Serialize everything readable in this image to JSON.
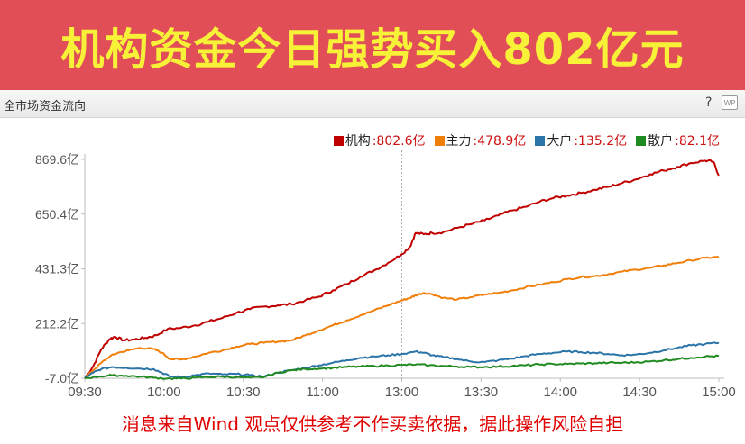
{
  "banner": {
    "title": "机构资金今日强势买入802亿元"
  },
  "panel": {
    "title": "全市场资金流向",
    "help_icon": "?",
    "wp_icon": "WP"
  },
  "legend": [
    {
      "name": "机构",
      "value": ":802.6亿",
      "color": "#c00000"
    },
    {
      "name": "主力",
      "value": ":478.9亿",
      "color": "#f07f09"
    },
    {
      "name": "大户",
      "value": ":135.2亿",
      "color": "#2a74a8"
    },
    {
      "name": "散户",
      "value": ":82.1亿",
      "color": "#1f8a1f"
    }
  ],
  "chart_data": {
    "type": "line",
    "x_ticks": [
      "09:30",
      "10:00",
      "10:30",
      "11:00",
      "13:00",
      "13:30",
      "14:00",
      "14:30",
      "15:00"
    ],
    "y_ticks": [
      "869.6亿",
      "650.4亿",
      "431.3亿",
      "212.2亿",
      "-7.0亿"
    ],
    "ylim": [
      -7.0,
      869.6
    ],
    "grid": false,
    "reference_line_at": "13:00",
    "legend_position": "top-right",
    "series": [
      {
        "name": "机构",
        "color": "#c00000",
        "final": 802.6,
        "points": [
          [
            0,
            -7
          ],
          [
            3,
            40
          ],
          [
            6,
            110
          ],
          [
            9,
            150
          ],
          [
            11,
            160
          ],
          [
            14,
            145
          ],
          [
            18,
            148
          ],
          [
            22,
            155
          ],
          [
            26,
            165
          ],
          [
            30,
            190
          ],
          [
            35,
            195
          ],
          [
            40,
            205
          ],
          [
            45,
            220
          ],
          [
            50,
            235
          ],
          [
            55,
            255
          ],
          [
            60,
            270
          ],
          [
            65,
            280
          ],
          [
            70,
            285
          ],
          [
            75,
            290
          ],
          [
            80,
            305
          ],
          [
            85,
            320
          ],
          [
            90,
            345
          ],
          [
            95,
            370
          ],
          [
            100,
            400
          ],
          [
            105,
            425
          ],
          [
            110,
            455
          ],
          [
            115,
            490
          ],
          [
            118,
            520
          ],
          [
            120,
            575
          ],
          [
            123,
            570
          ],
          [
            126,
            575
          ],
          [
            130,
            578
          ],
          [
            135,
            595
          ],
          [
            140,
            610
          ],
          [
            145,
            625
          ],
          [
            150,
            645
          ],
          [
            155,
            665
          ],
          [
            160,
            680
          ],
          [
            165,
            700
          ],
          [
            170,
            715
          ],
          [
            175,
            725
          ],
          [
            180,
            735
          ],
          [
            185,
            748
          ],
          [
            190,
            760
          ],
          [
            195,
            775
          ],
          [
            200,
            790
          ],
          [
            205,
            810
          ],
          [
            210,
            825
          ],
          [
            215,
            840
          ],
          [
            220,
            855
          ],
          [
            225,
            865
          ],
          [
            228,
            860
          ],
          [
            230,
            805
          ]
        ]
      },
      {
        "name": "主力",
        "color": "#f07f09",
        "final": 478.9,
        "points": [
          [
            0,
            -7
          ],
          [
            3,
            25
          ],
          [
            6,
            55
          ],
          [
            9,
            80
          ],
          [
            12,
            95
          ],
          [
            16,
            105
          ],
          [
            20,
            115
          ],
          [
            25,
            110
          ],
          [
            28,
            95
          ],
          [
            31,
            70
          ],
          [
            35,
            68
          ],
          [
            40,
            80
          ],
          [
            45,
            95
          ],
          [
            50,
            105
          ],
          [
            55,
            120
          ],
          [
            60,
            130
          ],
          [
            65,
            135
          ],
          [
            70,
            140
          ],
          [
            75,
            145
          ],
          [
            80,
            165
          ],
          [
            85,
            185
          ],
          [
            90,
            205
          ],
          [
            95,
            225
          ],
          [
            100,
            245
          ],
          [
            105,
            265
          ],
          [
            110,
            285
          ],
          [
            115,
            305
          ],
          [
            118,
            315
          ],
          [
            120,
            325
          ],
          [
            123,
            335
          ],
          [
            126,
            330
          ],
          [
            130,
            315
          ],
          [
            135,
            308
          ],
          [
            140,
            318
          ],
          [
            145,
            328
          ],
          [
            150,
            335
          ],
          [
            155,
            345
          ],
          [
            160,
            358
          ],
          [
            165,
            368
          ],
          [
            170,
            378
          ],
          [
            175,
            390
          ],
          [
            180,
            398
          ],
          [
            185,
            402
          ],
          [
            190,
            410
          ],
          [
            195,
            420
          ],
          [
            200,
            428
          ],
          [
            205,
            435
          ],
          [
            210,
            445
          ],
          [
            215,
            455
          ],
          [
            220,
            465
          ],
          [
            225,
            475
          ],
          [
            230,
            479
          ]
        ]
      },
      {
        "name": "大户",
        "color": "#2a74a8",
        "final": 135.2,
        "points": [
          [
            0,
            -7
          ],
          [
            3,
            15
          ],
          [
            6,
            30
          ],
          [
            10,
            38
          ],
          [
            15,
            35
          ],
          [
            20,
            32
          ],
          [
            25,
            30
          ],
          [
            28,
            15
          ],
          [
            31,
            0
          ],
          [
            35,
            -2
          ],
          [
            40,
            5
          ],
          [
            45,
            12
          ],
          [
            50,
            8
          ],
          [
            55,
            10
          ],
          [
            60,
            5
          ],
          [
            65,
            0
          ],
          [
            70,
            15
          ],
          [
            75,
            25
          ],
          [
            80,
            35
          ],
          [
            85,
            45
          ],
          [
            90,
            55
          ],
          [
            95,
            65
          ],
          [
            100,
            75
          ],
          [
            105,
            80
          ],
          [
            110,
            85
          ],
          [
            115,
            90
          ],
          [
            120,
            100
          ],
          [
            123,
            95
          ],
          [
            126,
            85
          ],
          [
            130,
            78
          ],
          [
            135,
            70
          ],
          [
            140,
            60
          ],
          [
            145,
            58
          ],
          [
            150,
            65
          ],
          [
            155,
            72
          ],
          [
            160,
            82
          ],
          [
            165,
            90
          ],
          [
            170,
            95
          ],
          [
            175,
            100
          ],
          [
            180,
            98
          ],
          [
            185,
            95
          ],
          [
            190,
            90
          ],
          [
            195,
            85
          ],
          [
            200,
            88
          ],
          [
            205,
            95
          ],
          [
            210,
            105
          ],
          [
            215,
            115
          ],
          [
            220,
            125
          ],
          [
            225,
            130
          ],
          [
            230,
            135
          ]
        ]
      },
      {
        "name": "散户",
        "color": "#1f8a1f",
        "final": 82.1,
        "points": [
          [
            0,
            -7
          ],
          [
            5,
            0
          ],
          [
            10,
            5
          ],
          [
            15,
            3
          ],
          [
            20,
            0
          ],
          [
            25,
            -5
          ],
          [
            30,
            -8
          ],
          [
            35,
            -8
          ],
          [
            40,
            -5
          ],
          [
            45,
            -2
          ],
          [
            50,
            0
          ],
          [
            55,
            -3
          ],
          [
            60,
            -5
          ],
          [
            65,
            -2
          ],
          [
            70,
            15
          ],
          [
            75,
            25
          ],
          [
            80,
            30
          ],
          [
            85,
            32
          ],
          [
            90,
            35
          ],
          [
            95,
            38
          ],
          [
            100,
            40
          ],
          [
            105,
            42
          ],
          [
            110,
            44
          ],
          [
            115,
            46
          ],
          [
            120,
            48
          ],
          [
            125,
            45
          ],
          [
            130,
            42
          ],
          [
            135,
            40
          ],
          [
            140,
            38
          ],
          [
            145,
            38
          ],
          [
            150,
            40
          ],
          [
            155,
            42
          ],
          [
            160,
            45
          ],
          [
            165,
            48
          ],
          [
            170,
            50
          ],
          [
            175,
            50
          ],
          [
            180,
            52
          ],
          [
            185,
            53
          ],
          [
            190,
            55
          ],
          [
            195,
            55
          ],
          [
            200,
            57
          ],
          [
            205,
            60
          ],
          [
            210,
            65
          ],
          [
            215,
            70
          ],
          [
            220,
            75
          ],
          [
            225,
            80
          ],
          [
            230,
            82
          ]
        ]
      }
    ]
  },
  "disclaimer": "消息来自Wind  观点仅供参考不作买卖依据，据此操作风险自担"
}
